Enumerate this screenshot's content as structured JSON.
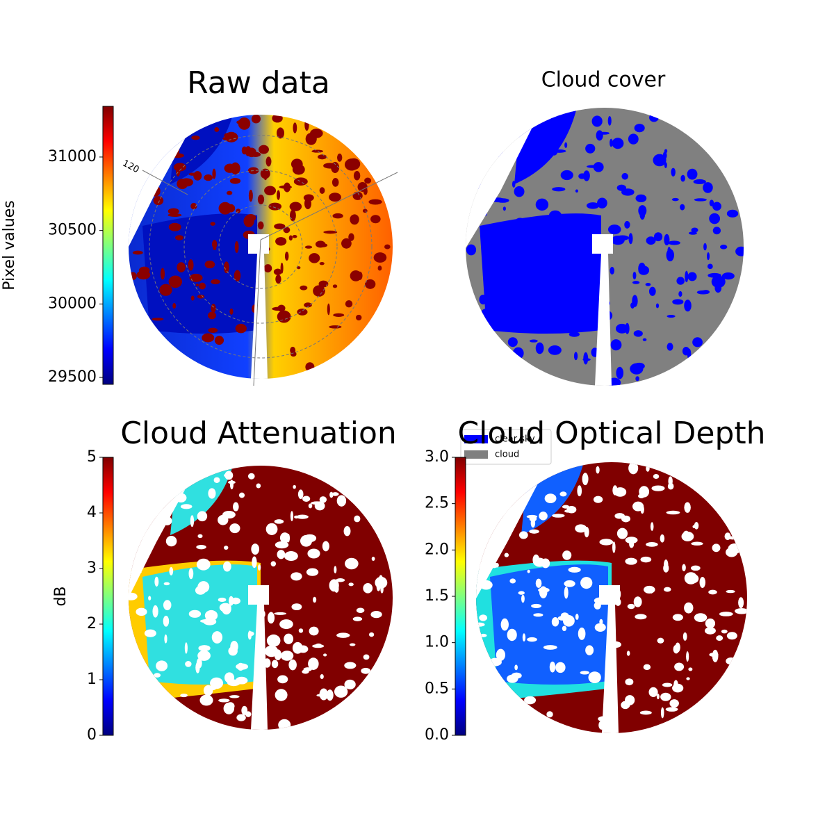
{
  "chart_data": [
    {
      "type": "image",
      "title": "Raw data",
      "ylabel": "Pixel values",
      "colormap": "jet",
      "ylim": [
        29453,
        31345
      ],
      "yticks": [
        29500,
        30000,
        30500,
        31000
      ],
      "annotations": [
        "120"
      ]
    },
    {
      "type": "image",
      "title": "Cloud cover",
      "series": [
        {
          "name": "clear sky",
          "color": "#0000ff"
        },
        {
          "name": "cloud",
          "color": "#808080"
        }
      ]
    },
    {
      "type": "image",
      "title": "Cloud Attenuation",
      "ylabel": "dB",
      "colormap": "jet",
      "ylim": [
        0,
        5
      ],
      "yticks": [
        0,
        1,
        2,
        3,
        4,
        5
      ]
    },
    {
      "type": "image",
      "title": "Cloud Optical Depth",
      "colormap": "jet",
      "ylim": [
        0,
        3
      ],
      "yticks": [
        {
          "value": 0,
          "label": "0.0"
        },
        {
          "value": 0.5,
          "label": "0.5"
        },
        {
          "value": 1,
          "label": "1.0"
        },
        {
          "value": 1.5,
          "label": "1.5"
        },
        {
          "value": 2,
          "label": "2.0"
        },
        {
          "value": 2.5,
          "label": "2.5"
        },
        {
          "value": 3,
          "label": "3.0"
        }
      ]
    }
  ]
}
